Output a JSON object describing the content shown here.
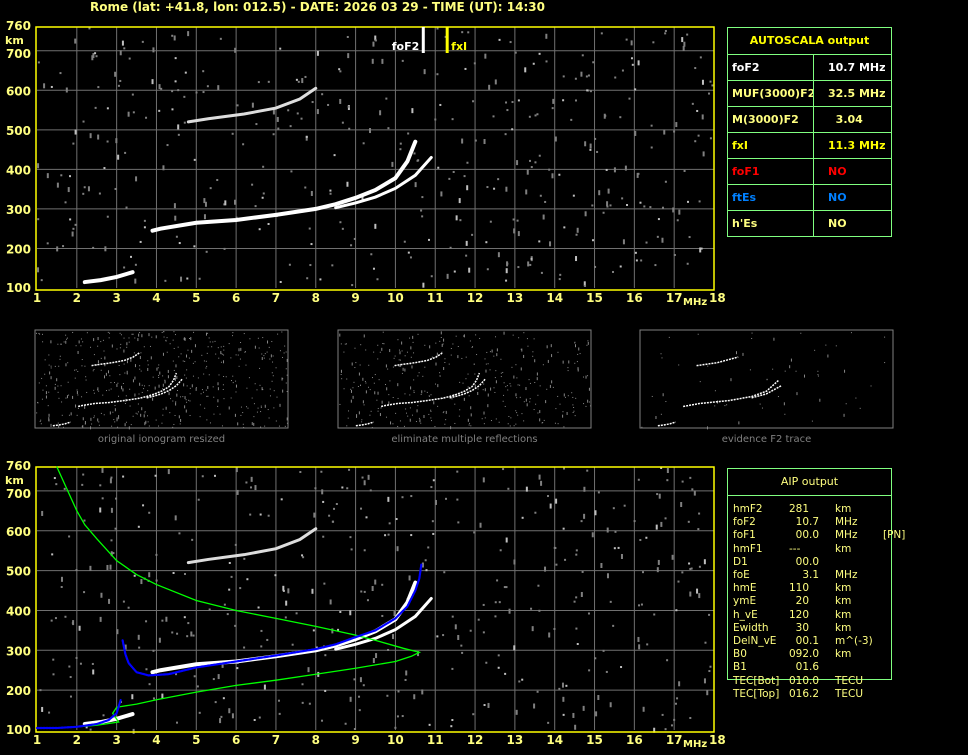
{
  "header": {
    "title": "Rome (lat: +41.8, lon: 012.5) - DATE: 2026 03 29 - TIME (UT): 14:30"
  },
  "chart_data": [
    {
      "type": "scatter",
      "name": "ionogram",
      "xlabel": "MHz",
      "ylabel": "km",
      "xlim": [
        1,
        18
      ],
      "ylim": [
        100,
        760
      ],
      "xticks": [
        "1",
        "2",
        "3",
        "4",
        "5",
        "6",
        "7",
        "8",
        "9",
        "10",
        "11",
        "12",
        "13",
        "14",
        "15",
        "16",
        "17",
        "18"
      ],
      "yticks": [
        "100",
        "200",
        "300",
        "400",
        "500",
        "600",
        "700",
        "760"
      ],
      "grid": true,
      "markers": [
        {
          "label": "foF2",
          "freq": 10.7,
          "color": "#ffffff"
        },
        {
          "label": "fxI",
          "freq": 11.3,
          "color": "#ffff00"
        }
      ],
      "traces": {
        "e_layer": [
          [
            2.2,
            115
          ],
          [
            2.6,
            120
          ],
          [
            3.0,
            128
          ],
          [
            3.4,
            140
          ]
        ],
        "o_mode": [
          [
            3.9,
            245
          ],
          [
            4.1,
            250
          ],
          [
            5,
            265
          ],
          [
            6,
            272
          ],
          [
            7,
            285
          ],
          [
            8,
            300
          ],
          [
            8.5,
            312
          ],
          [
            9,
            328
          ],
          [
            9.5,
            348
          ],
          [
            10,
            378
          ],
          [
            10.3,
            420
          ],
          [
            10.5,
            470
          ]
        ],
        "x_mode": [
          [
            8.5,
            303
          ],
          [
            9,
            315
          ],
          [
            9.5,
            330
          ],
          [
            10,
            352
          ],
          [
            10.5,
            385
          ],
          [
            10.9,
            430
          ]
        ],
        "second_hop": [
          [
            4.8,
            520
          ],
          [
            5.3,
            528
          ],
          [
            6.2,
            540
          ],
          [
            7,
            555
          ],
          [
            7.6,
            578
          ],
          [
            8,
            605
          ]
        ]
      }
    },
    {
      "type": "line",
      "name": "aip-profile",
      "xlabel": "MHz",
      "ylabel": "km",
      "xlim": [
        1,
        18
      ],
      "ylim": [
        100,
        760
      ],
      "xticks": [
        "1",
        "2",
        "3",
        "4",
        "5",
        "6",
        "7",
        "8",
        "9",
        "10",
        "11",
        "12",
        "13",
        "14",
        "15",
        "16",
        "17",
        "18"
      ],
      "yticks": [
        "100",
        "200",
        "300",
        "400",
        "500",
        "600",
        "700",
        "760"
      ],
      "grid": true,
      "series": [
        {
          "color": "#00ff00",
          "points": [
            [
              1.5,
              760
            ],
            [
              2,
              650
            ],
            [
              2.2,
              615
            ],
            [
              2.5,
              580
            ],
            [
              3,
              525
            ],
            [
              3.5,
              490
            ],
            [
              4,
              465
            ],
            [
              5,
              425
            ],
            [
              6,
              400
            ],
            [
              7,
              380
            ],
            [
              8,
              360
            ],
            [
              9,
              338
            ],
            [
              9.5,
              325
            ],
            [
              10.2,
              305
            ],
            [
              10.6,
              295
            ],
            [
              10.4,
              285
            ],
            [
              10,
              272
            ],
            [
              9,
              255
            ],
            [
              8,
              240
            ],
            [
              7,
              225
            ],
            [
              6,
              212
            ],
            [
              5,
              195
            ],
            [
              4,
              176
            ],
            [
              3.5,
              165
            ],
            [
              3,
              157
            ],
            [
              2.9,
              142
            ],
            [
              3.05,
              120
            ],
            [
              2.5,
              112
            ],
            [
              2,
              108
            ]
          ]
        },
        {
          "color": "#0000ff",
          "points": [
            [
              1,
              105
            ],
            [
              1.5,
              105
            ],
            [
              2,
              108
            ],
            [
              2.5,
              115
            ],
            [
              2.8,
              125
            ],
            [
              3,
              142
            ],
            [
              3.1,
              175
            ]
          ]
        },
        {
          "color": "#0000ff",
          "points": [
            [
              3.15,
              325
            ],
            [
              3.22,
              290
            ],
            [
              3.3,
              268
            ],
            [
              3.5,
              245
            ],
            [
              3.8,
              237
            ],
            [
              4.3,
              240
            ],
            [
              5,
              257
            ],
            [
              6,
              272
            ],
            [
              7,
              287
            ],
            [
              8,
              303
            ],
            [
              8.5,
              315
            ],
            [
              9,
              333
            ],
            [
              9.5,
              350
            ],
            [
              10,
              380
            ],
            [
              10.3,
              410
            ],
            [
              10.5,
              450
            ],
            [
              10.6,
              480
            ],
            [
              10.65,
              515
            ]
          ]
        }
      ]
    }
  ],
  "autoscala": {
    "title": "AUTOSCALA output",
    "rows": [
      {
        "key": "foF2",
        "value": "10.7 MHz",
        "kcolor": "#ffffff",
        "vcolor": "#ffffff"
      },
      {
        "key": "MUF(3000)F2",
        "value": "32.5 MHz",
        "kcolor": "#ffff80",
        "vcolor": "#ffff80"
      },
      {
        "key": "M(3000)F2",
        "value": "  3.04",
        "kcolor": "#ffff80",
        "vcolor": "#ffff80"
      },
      {
        "key": "fxI",
        "value": "11.3 MHz",
        "kcolor": "#ffff00",
        "vcolor": "#ffff00"
      },
      {
        "key": "foF1",
        "value": "NO",
        "kcolor": "#ff0000",
        "vcolor": "#ff0000"
      },
      {
        "key": "ftEs",
        "value": "NO",
        "kcolor": "#0080ff",
        "vcolor": "#0080ff"
      },
      {
        "key": "h'Es",
        "value": "NO",
        "kcolor": "#ffff80",
        "vcolor": "#ffff80"
      }
    ]
  },
  "thumbnails": [
    {
      "caption": "original ionogram resized"
    },
    {
      "caption": "eliminate multiple reflections"
    },
    {
      "caption": "evidence F2 trace"
    }
  ],
  "aip": {
    "title": "AIP output",
    "rows": [
      [
        "hmF2",
        "281",
        "km",
        ""
      ],
      [
        "foF2",
        "  10.7",
        "MHz",
        ""
      ],
      [
        "foF1",
        "  00.0",
        "MHz",
        "[PN]"
      ],
      [
        "hmF1",
        "---",
        "km",
        ""
      ],
      [
        "D1",
        "  00.0",
        "",
        ""
      ],
      [
        "foE",
        "    3.1",
        "MHz",
        ""
      ],
      [
        "hmE",
        "110",
        "km",
        ""
      ],
      [
        "ymE",
        "  20",
        "km",
        ""
      ],
      [
        "h_vE",
        "120",
        "km",
        ""
      ],
      [
        "Ewidth",
        "  30",
        "km",
        ""
      ],
      [
        "DelN_vE",
        "  00.1",
        "m^(-3)",
        ""
      ],
      [
        "B0",
        "092.0",
        "km",
        ""
      ],
      [
        "B1",
        "  01.6",
        "",
        ""
      ],
      [
        "TEC[Bot]",
        "010.0",
        "TECU",
        ""
      ],
      [
        "TEC[Top]",
        "016.2",
        "TECU",
        ""
      ]
    ]
  }
}
